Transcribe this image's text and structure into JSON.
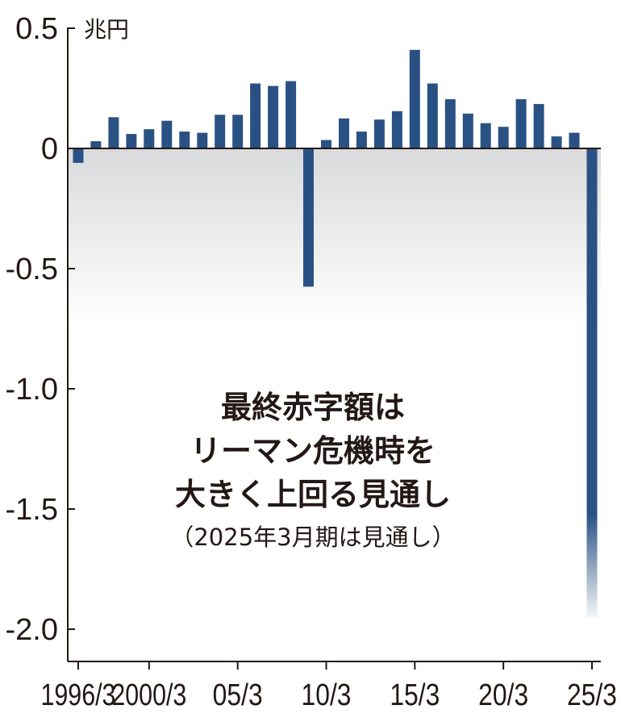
{
  "chart_data": {
    "type": "bar",
    "unit": "兆円",
    "ylim": [
      -2.1,
      0.5
    ],
    "y_ticks": [
      {
        "value": 0.5,
        "label": "0.5"
      },
      {
        "value": 0,
        "label": "0"
      },
      {
        "value": -0.5,
        "label": "-0.5"
      },
      {
        "value": -1.0,
        "label": "-1.0"
      },
      {
        "value": -1.5,
        "label": "-1.5"
      },
      {
        "value": -2.0,
        "label": "-2.0"
      }
    ],
    "x_ticks": [
      {
        "index": 0,
        "label": "1996/3"
      },
      {
        "index": 4,
        "label": "2000/3"
      },
      {
        "index": 9,
        "label": "05/3"
      },
      {
        "index": 14,
        "label": "10/3"
      },
      {
        "index": 19,
        "label": "15/3"
      },
      {
        "index": 24,
        "label": "20/3"
      },
      {
        "index": 29,
        "label": "25/3"
      }
    ],
    "categories": [
      "1996/3",
      "1997/3",
      "1998/3",
      "1999/3",
      "2000/3",
      "2001/3",
      "2002/3",
      "2003/3",
      "2004/3",
      "2005/3",
      "2006/3",
      "2007/3",
      "2008/3",
      "2009/3",
      "2010/3",
      "2011/3",
      "2012/3",
      "2013/3",
      "2014/3",
      "2015/3",
      "2016/3",
      "2017/3",
      "2018/3",
      "2019/3",
      "2020/3",
      "2021/3",
      "2022/3",
      "2023/3",
      "2024/3",
      "2025/3"
    ],
    "values": [
      -0.06,
      0.03,
      0.13,
      0.06,
      0.08,
      0.115,
      0.07,
      0.065,
      0.14,
      0.14,
      0.27,
      0.26,
      0.28,
      -0.575,
      0.035,
      0.125,
      0.07,
      0.12,
      0.155,
      0.41,
      0.27,
      0.205,
      0.145,
      0.105,
      0.09,
      0.205,
      0.185,
      0.05,
      0.065,
      -1.95
    ],
    "forecast_index": 29,
    "bar_color": "#2a5184",
    "annotation": {
      "lines": [
        "最終赤字額は",
        "リーマン危機時を",
        "大きく上回る見通し"
      ],
      "note": "（2025年3月期は見通し）"
    }
  }
}
